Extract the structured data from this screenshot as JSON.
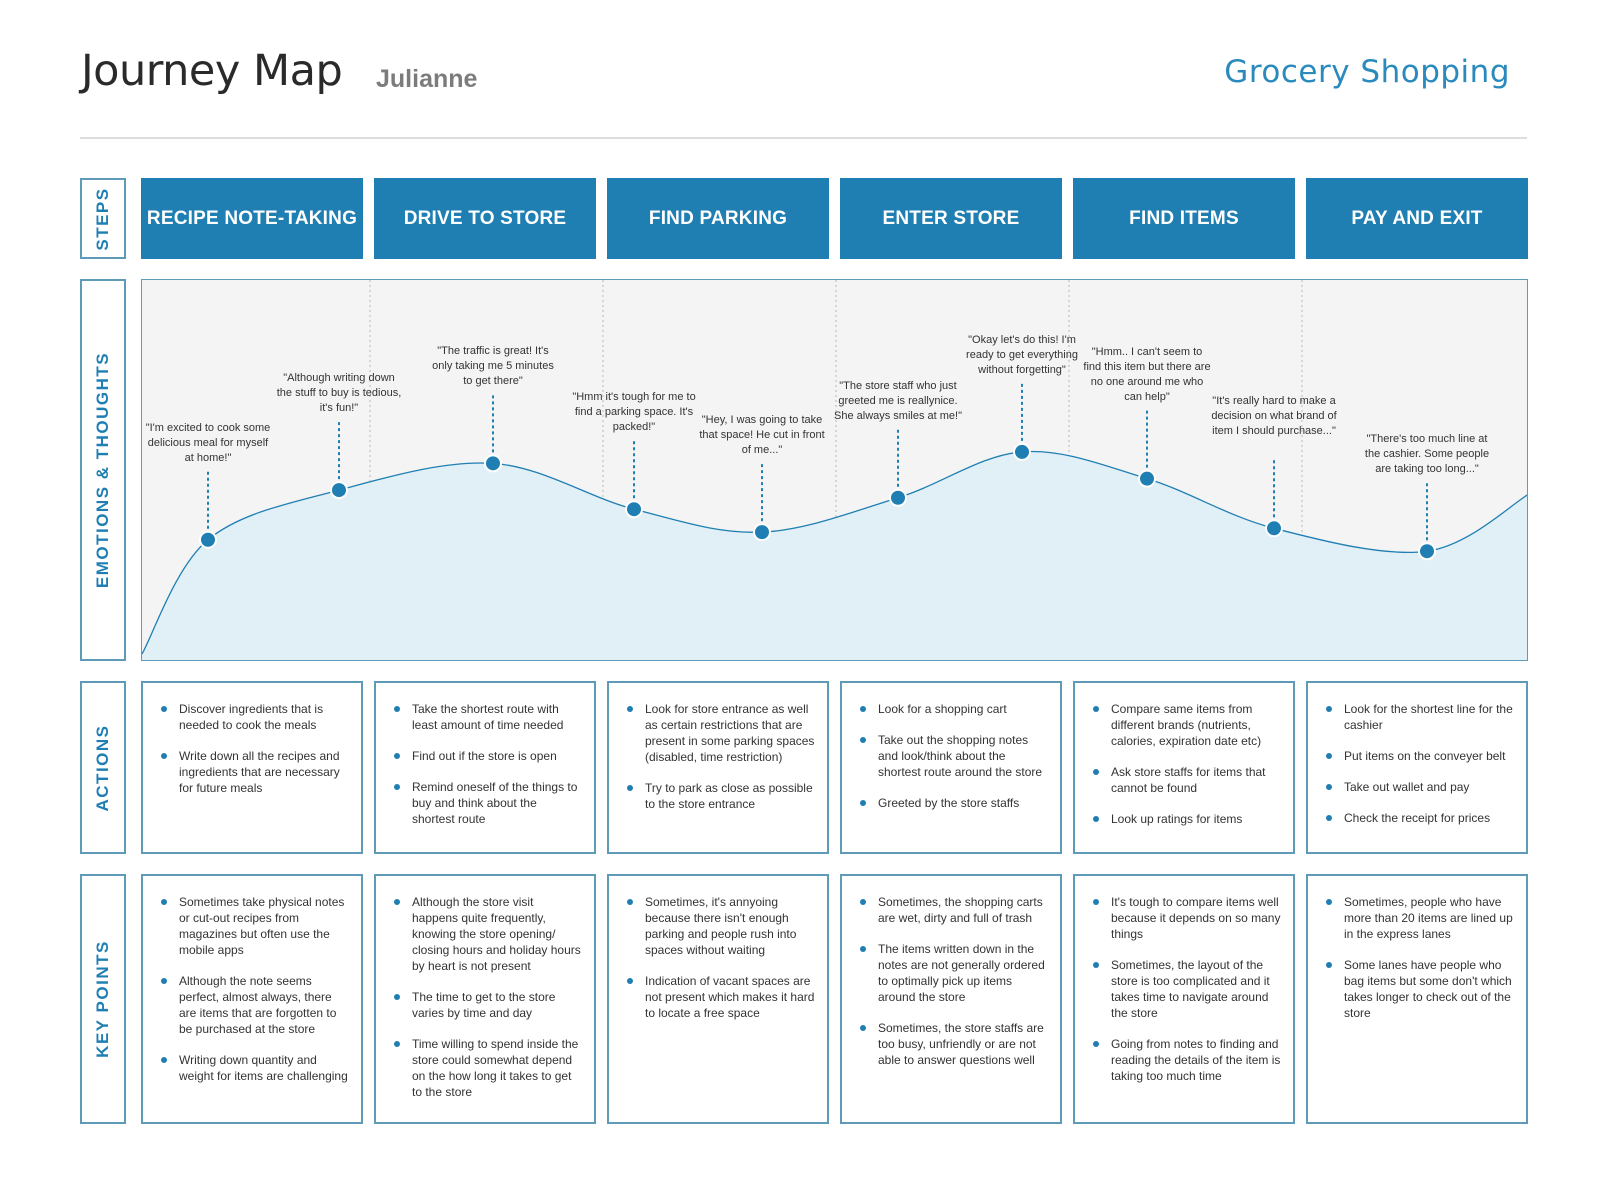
{
  "header": {
    "title": "Journey Map",
    "persona": "Julianne",
    "topic": "Grocery Shopping"
  },
  "row_labels": {
    "steps": "STEPS",
    "emotions": "EMOTIONS & THOUGHTS",
    "actions": "ACTIONS",
    "key_points": "KEY POINTS"
  },
  "colors": {
    "accent": "#1f7fb3",
    "topic": "#2a8abd",
    "border": "#5f9ab9",
    "curve_fill": "#e1eff7",
    "panel_bg": "#f4f4f4"
  },
  "steps": [
    {
      "label": "RECIPE NOTE-TAKING",
      "actions": [
        "Discover ingredients that is needed to cook the meals",
        "Write down all the recipes and ingredients that are necessary for future meals"
      ],
      "key_points": [
        "Sometimes take physical notes or cut-out recipes from magazines but often use the mobile apps",
        "Although the note seems perfect, almost always, there are items that are forgotten to be purchased at the store",
        "Writing down quantity and weight for items are challenging"
      ]
    },
    {
      "label": "DRIVE TO STORE",
      "actions": [
        "Take the shortest route with least amount of time needed",
        "Find out if the store is open",
        "Remind oneself of the things to buy and think about the shortest route"
      ],
      "key_points": [
        "Although the store visit happens quite frequently, knowing the store opening/ closing hours and holiday hours by heart is not present",
        "The time to get to the store varies by time and day",
        "Time willing to spend inside the store could somewhat depend on the how long it takes to get to the store"
      ]
    },
    {
      "label": "FIND PARKING",
      "actions": [
        "Look for store entrance as well as certain restrictions that are present in some parking spaces (disabled, time restriction)",
        "Try to park as close as possible to the store entrance"
      ],
      "key_points": [
        "Sometimes, it's annyoing because there isn't enough parking and people rush into spaces without waiting",
        "Indication of vacant spaces are not present which makes it hard to locate a free space"
      ]
    },
    {
      "label": "ENTER STORE",
      "actions": [
        "Look for a shopping cart",
        "Take out the shopping notes and look/think about the shortest route around the store",
        "Greeted by the store staffs"
      ],
      "key_points": [
        "Sometimes, the shopping carts are wet, dirty and full of trash",
        "The items written down in the notes are not generally ordered to optimally pick up items around the store",
        "Sometimes, the store staffs are too busy, unfriendly or are not able to answer questions well"
      ]
    },
    {
      "label": "FIND ITEMS",
      "actions": [
        "Compare same items from different brands (nutrients, calories, expiration date etc)",
        "Ask store staffs for items that cannot be found",
        "Look up ratings for items"
      ],
      "key_points": [
        "It's tough to compare items well because it depends on so many things",
        "Sometimes, the layout of the store is too complicated and it takes time to navigate around the store",
        "Going from notes to finding and reading the details of the item is taking too much time"
      ]
    },
    {
      "label": "PAY AND EXIT",
      "actions": [
        "Look for the shortest line for the cashier",
        "Put items on the conveyer belt",
        "Take out wallet and pay",
        "Check the receipt for prices"
      ],
      "key_points": [
        "Sometimes, people who have more than 20 items are lined up in the express lanes",
        "Some lanes have people who bag items but some don't which takes longer to check out of the store"
      ]
    }
  ],
  "emotions": [
    {
      "quote": "\"I'm excited to cook some delicious meal for myself at home!\"",
      "level": 0.32
    },
    {
      "quote": "\"Although writing down the stuff to buy is tedious, it's fun!\"",
      "level": 0.45
    },
    {
      "quote": "\"The traffic is great! It's only taking me 5 minutes to get there\"",
      "level": 0.52
    },
    {
      "quote": "\"Hmm it's tough for me to find a parking space. It's packed!\"",
      "level": 0.4
    },
    {
      "quote": "\"Hey, I was going to take that space! He cut in front of me...\"",
      "level": 0.34
    },
    {
      "quote": "\"The store staff who just greeted me is reallynice. She always smiles at me!\"",
      "level": 0.43
    },
    {
      "quote": "\"Okay let's do this! I'm ready to get everything without forgetting\"",
      "level": 0.55
    },
    {
      "quote": "\"Hmm.. I can't seem to find this item but there are no one around me who can help\"",
      "level": 0.48
    },
    {
      "quote": "\"It's really hard to make a decision on what brand of item I should purchase...\"",
      "level": 0.35
    },
    {
      "quote": "\"There's too much line at the cashier. Some people are taking too long...\"",
      "level": 0.29
    }
  ]
}
